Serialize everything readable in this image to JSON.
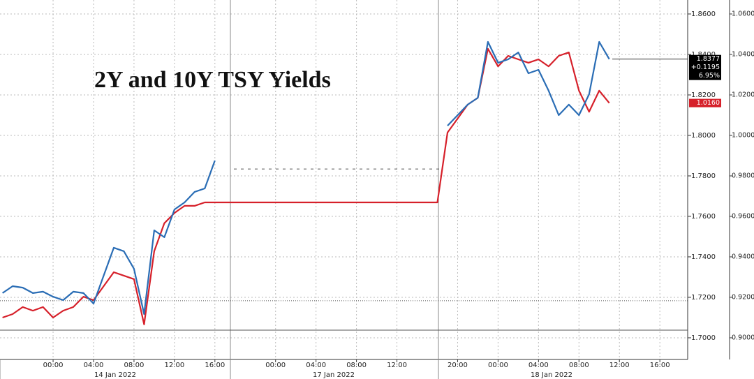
{
  "chart_data": {
    "type": "line",
    "title": "2Y and 10Y TSY Yields",
    "categories": [
      null,
      null,
      null,
      null,
      null,
      "00:00",
      null,
      null,
      null,
      "04:00",
      null,
      null,
      null,
      "08:00",
      null,
      null,
      null,
      "12:00",
      null,
      null,
      null,
      "16:00",
      null,
      null,
      null,
      null,
      null,
      "00:00",
      null,
      null,
      null,
      "04:00",
      null,
      null,
      null,
      "08:00",
      null,
      null,
      null,
      "12:00",
      null,
      null,
      null,
      null,
      null,
      "20:00",
      null,
      null,
      null,
      "00:00",
      null,
      null,
      null,
      "04:00",
      null,
      null,
      null,
      "08:00",
      null,
      null,
      null,
      "12:00",
      null,
      null,
      null,
      "16:00",
      null,
      null
    ],
    "x_group_labels": [
      "14 Jan 2022",
      "17 Jan 2022",
      "18 Jan 2022"
    ],
    "series": [
      {
        "name": "10Y",
        "color": "#2a6db5",
        "axis": "y",
        "values": [
          1.7221,
          1.7255,
          1.7248,
          1.7221,
          1.7228,
          1.7203,
          1.7186,
          1.7228,
          1.7221,
          1.7169,
          1.7307,
          1.7445,
          1.7428,
          1.7341,
          1.7117,
          1.7531,
          1.7497,
          1.7634,
          1.7669,
          1.7721,
          1.7738,
          1.7876,
          null,
          null,
          null,
          null,
          null,
          null,
          null,
          null,
          null,
          null,
          null,
          null,
          null,
          null,
          null,
          null,
          null,
          null,
          null,
          null,
          null,
          null,
          1.8048,
          1.81,
          1.8152,
          1.8186,
          1.8462,
          1.8359,
          1.8376,
          1.841,
          1.8307,
          1.8324,
          1.8221,
          1.81,
          1.8152,
          1.81,
          1.8203,
          1.8462,
          1.8377,
          null,
          null,
          null,
          null,
          null,
          null,
          null
        ]
      },
      {
        "name": "2Y",
        "color": "#d6202a",
        "axis": "y2",
        "values": [
          0.91,
          0.9117,
          0.9152,
          0.9134,
          0.9152,
          0.91,
          0.9134,
          0.9152,
          0.9203,
          0.9186,
          0.9255,
          0.9324,
          0.9307,
          0.929,
          0.9066,
          0.9428,
          0.9566,
          0.9617,
          0.9652,
          0.9652,
          0.9669,
          0.9669,
          0.9669,
          0.9669,
          0.9669,
          0.9669,
          0.9669,
          0.9669,
          0.9669,
          0.9669,
          0.9669,
          0.9669,
          0.9669,
          0.9669,
          0.9669,
          0.9669,
          0.9669,
          0.9669,
          0.9669,
          0.9669,
          0.9669,
          0.9669,
          0.9669,
          0.9669,
          1.0014,
          1.0083,
          1.0152,
          1.0186,
          1.0428,
          1.0341,
          1.0393,
          1.0376,
          1.0359,
          1.0376,
          1.0341,
          1.0393,
          1.041,
          1.0221,
          1.0117,
          1.0221,
          1.016,
          null,
          null,
          null,
          null,
          null,
          null,
          null
        ]
      }
    ],
    "ylim": [
      1.6893,
      1.8669
    ],
    "yticks": [
      {
        "value": 1.7,
        "label": "1.7000"
      },
      {
        "value": 1.72,
        "label": "1.7200"
      },
      {
        "value": 1.74,
        "label": "1.7400"
      },
      {
        "value": 1.76,
        "label": "1.7600"
      },
      {
        "value": 1.78,
        "label": "1.7800"
      },
      {
        "value": 1.8,
        "label": "1.8000"
      },
      {
        "value": 1.82,
        "label": "1.8200"
      },
      {
        "value": 1.84,
        "label": "1.8400"
      },
      {
        "value": 1.86,
        "label": "1.8600"
      }
    ],
    "y2lim": [
      0.8893,
      1.0669
    ],
    "y2ticks": [
      {
        "value": 0.9,
        "label": "0.9000"
      },
      {
        "value": 0.92,
        "label": "0.9200"
      },
      {
        "value": 0.94,
        "label": "0.9400"
      },
      {
        "value": 0.96,
        "label": "0.9600"
      },
      {
        "value": 0.98,
        "label": "0.9800"
      },
      {
        "value": 1.0,
        "label": "1.0000"
      },
      {
        "value": 1.02,
        "label": "1.0200"
      },
      {
        "value": 1.04,
        "label": "1.0400"
      },
      {
        "value": 1.06,
        "label": "1.0600"
      }
    ],
    "grid": true,
    "reference_lines": [
      {
        "value": 1.7183,
        "style": "dotted"
      },
      {
        "value": 1.7038,
        "style": "solid"
      },
      {
        "value": 1.7834,
        "style": "dashed"
      }
    ],
    "last_value_boxes": [
      {
        "axis": "y",
        "color": "#000000",
        "value": {
          "value": 1.8377,
          "label": "1.8377"
        },
        "change": "+0.1195",
        "change_pct": "6.95%"
      },
      {
        "axis": "y2",
        "color": "#d6202a",
        "value": {
          "value": 1.016,
          "label": "1.0160"
        }
      }
    ]
  }
}
